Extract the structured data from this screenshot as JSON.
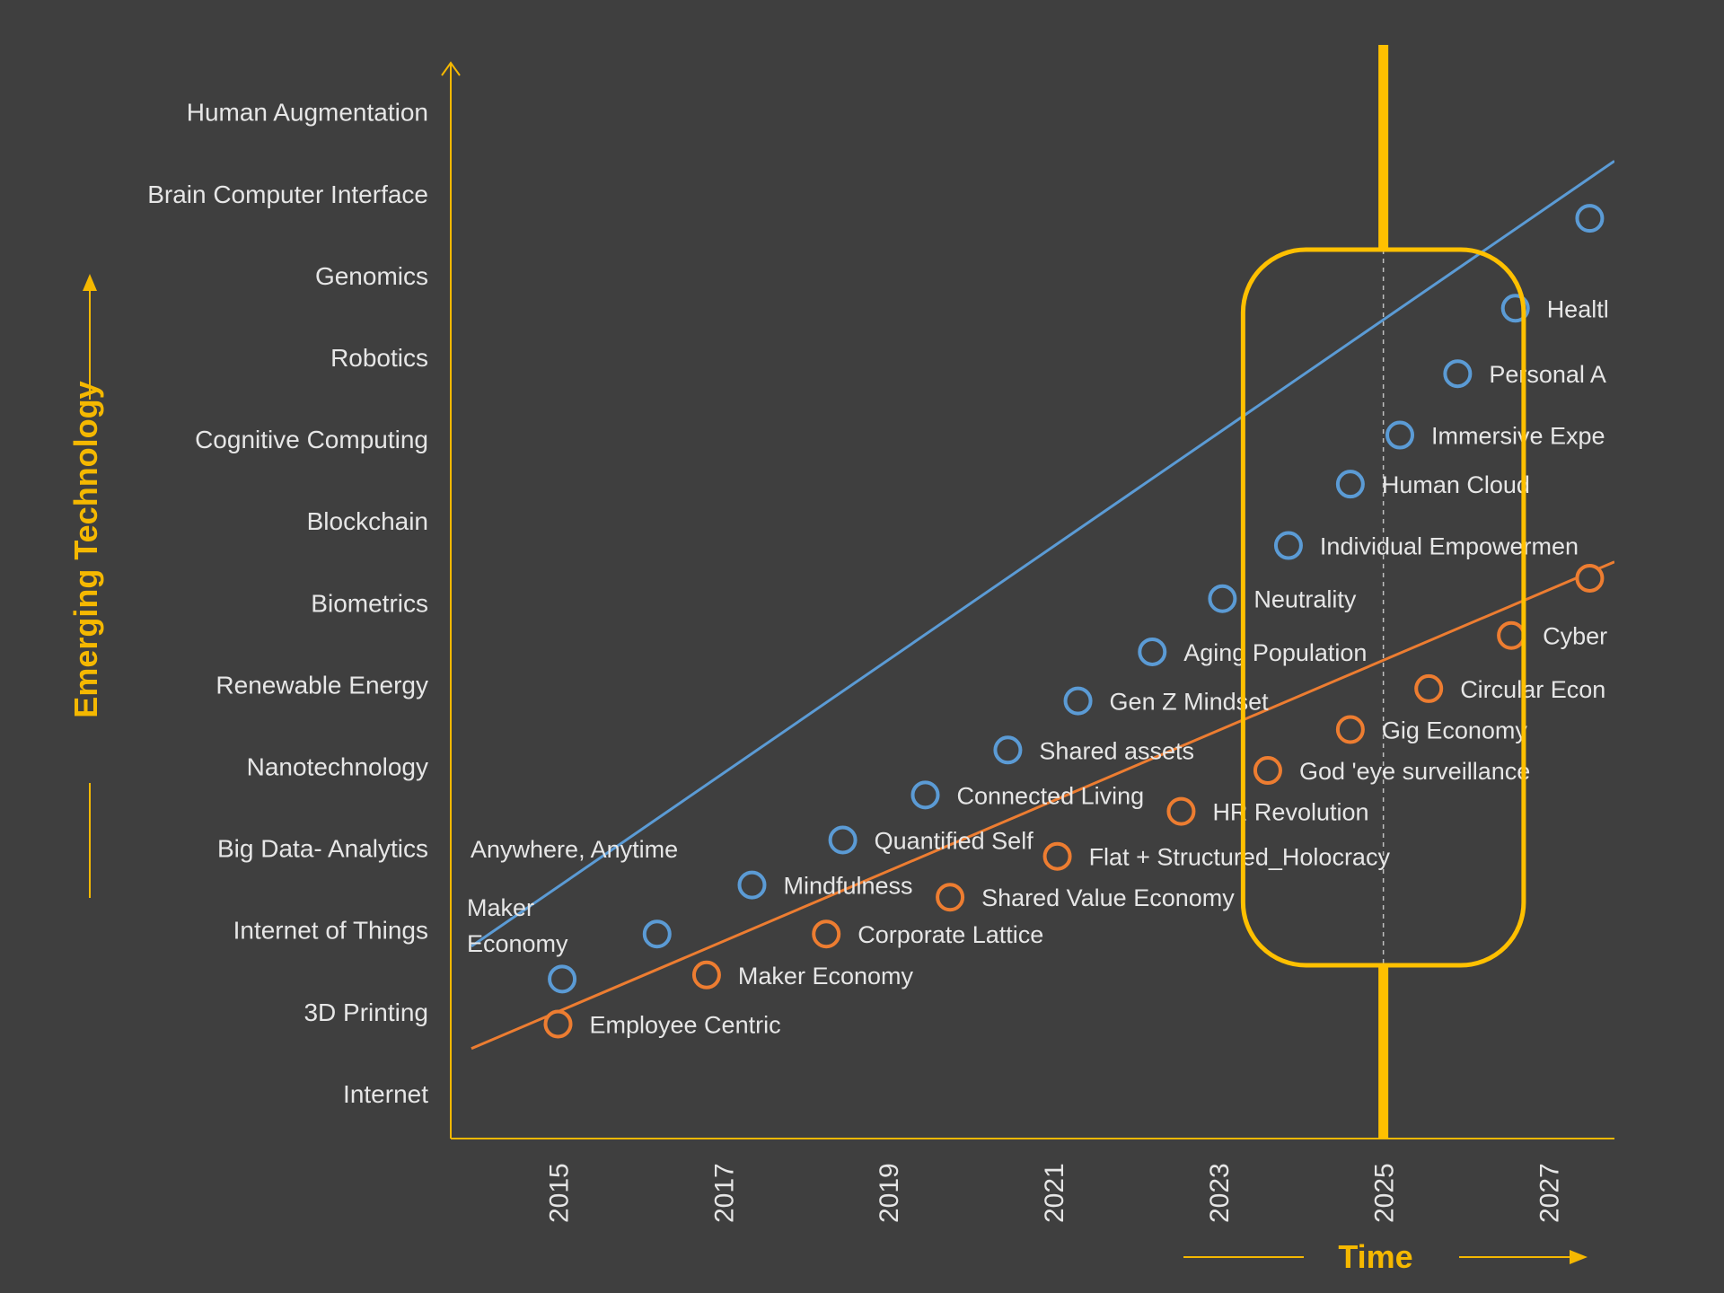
{
  "chart_data": {
    "type": "line",
    "xlabel": "Time",
    "ylabel": "Emerging Technology",
    "xlim": [
      2013.7,
      2027.8
    ],
    "ylim": [
      -0.55,
      12.6
    ],
    "xticks": [
      "2015",
      "2017",
      "2019",
      "2021",
      "2023",
      "2025",
      "2027"
    ],
    "categories": [
      "Internet",
      "3D Printing",
      "Internet of Things",
      "Big Data- Analytics",
      "Nanotechnology",
      "Renewable Energy",
      "Biometrics",
      "Blockchain",
      "Cognitive Computing",
      "Robotics",
      "Genomics",
      "Brain Computer Interface",
      "Human Augmentation"
    ],
    "highlight": {
      "x": 2025,
      "x_range": [
        2023.3,
        2026.7
      ]
    },
    "colors": {
      "background": "#3f3f3f",
      "axis": "#f5b800",
      "highlight": "#ffc000",
      "series_1": "#5b9bd5",
      "series_2": "#ed7d31"
    },
    "series": [
      {
        "color": "#5b9bd5",
        "line_start": [
          2013.95,
          1.8
        ],
        "line_end": [
          2027.8,
          11.4
        ],
        "points": [
          {
            "x": 2015.05,
            "y": 1.4,
            "label": "Maker\nEconomy"
          },
          {
            "x": 2016.2,
            "y": 1.95,
            "label": "Anywhere, Anytime"
          },
          {
            "x": 2017.35,
            "y": 2.55,
            "label": "Mindfulness"
          },
          {
            "x": 2018.45,
            "y": 3.1,
            "label": "Quantified Self"
          },
          {
            "x": 2019.45,
            "y": 3.65,
            "label": "Connected Living"
          },
          {
            "x": 2020.45,
            "y": 4.2,
            "label": "Shared assets"
          },
          {
            "x": 2021.3,
            "y": 4.8,
            "label": "Gen Z Mindset"
          },
          {
            "x": 2022.2,
            "y": 5.4,
            "label": "Aging Population"
          },
          {
            "x": 2023.05,
            "y": 6.05,
            "label": "Neutrality"
          },
          {
            "x": 2023.85,
            "y": 6.7,
            "label": "Individual Empowermen"
          },
          {
            "x": 2024.6,
            "y": 7.45,
            "label": "Human Cloud"
          },
          {
            "x": 2025.2,
            "y": 8.05,
            "label": "Immersive Expe"
          },
          {
            "x": 2025.9,
            "y": 8.8,
            "label": "Personal A"
          },
          {
            "x": 2026.6,
            "y": 9.6,
            "label": "Healtl"
          },
          {
            "x": 2027.5,
            "y": 10.7,
            "label": ""
          }
        ]
      },
      {
        "color": "#ed7d31",
        "line_start": [
          2013.95,
          0.55
        ],
        "line_end": [
          2027.8,
          6.5
        ],
        "points": [
          {
            "x": 2015.0,
            "y": 0.85,
            "label": "Employee Centric"
          },
          {
            "x": 2016.8,
            "y": 1.45,
            "label": "Maker Economy"
          },
          {
            "x": 2018.25,
            "y": 1.95,
            "label": "Corporate Lattice"
          },
          {
            "x": 2019.75,
            "y": 2.4,
            "label": "Shared Value Economy"
          },
          {
            "x": 2021.05,
            "y": 2.9,
            "label": "Flat + Structured_Holocracy"
          },
          {
            "x": 2022.55,
            "y": 3.45,
            "label": "HR Revolution"
          },
          {
            "x": 2023.6,
            "y": 3.95,
            "label": "God 'eye surveillance"
          },
          {
            "x": 2024.6,
            "y": 4.45,
            "label": "Gig Economy"
          },
          {
            "x": 2025.55,
            "y": 4.95,
            "label": "Circular Econ"
          },
          {
            "x": 2026.55,
            "y": 5.6,
            "label": "Cyber"
          },
          {
            "x": 2027.5,
            "y": 6.3,
            "label": ""
          }
        ]
      }
    ]
  }
}
